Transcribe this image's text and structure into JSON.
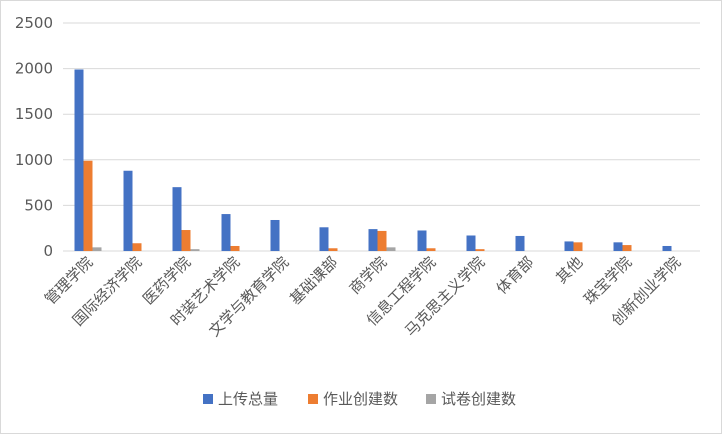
{
  "chart_data": {
    "type": "bar",
    "title": "",
    "xlabel": "",
    "ylabel": "",
    "ylim": [
      0,
      2500
    ],
    "yticks": [
      "0",
      "500",
      "1000",
      "1500",
      "2000",
      "2500"
    ],
    "grid": true,
    "legend_position": "bottom",
    "categories": [
      "管理学院",
      "国际经济学院",
      "医药学院",
      "时装艺术学院",
      "文学与教育学院",
      "基础课部",
      "商学院",
      "信息工程学院",
      "马克思主义学院",
      "体育部",
      "其他",
      "珠宝学院",
      "创新创业学院"
    ],
    "series": [
      {
        "name": "上传总量",
        "color": "#4472c4",
        "values": [
          1990,
          880,
          700,
          405,
          340,
          260,
          240,
          225,
          170,
          165,
          105,
          95,
          55
        ]
      },
      {
        "name": "作业创建数",
        "color": "#ed7d31",
        "values": [
          990,
          85,
          230,
          55,
          0,
          30,
          220,
          30,
          20,
          0,
          95,
          65,
          0
        ]
      },
      {
        "name": "试卷创建数",
        "color": "#a5a5a5",
        "values": [
          40,
          0,
          20,
          0,
          0,
          0,
          40,
          0,
          0,
          0,
          0,
          0,
          0
        ]
      }
    ]
  }
}
